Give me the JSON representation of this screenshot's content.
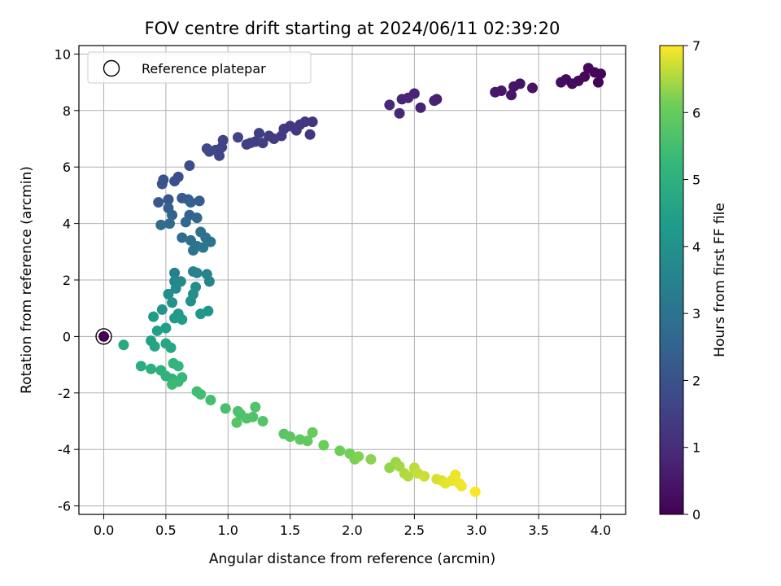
{
  "chart_data": {
    "type": "scatter",
    "title": "FOV centre drift starting at 2024/06/11 02:39:20",
    "xlabel": "Angular distance from reference (arcmin)",
    "ylabel": "Rotation from reference (arcmin)",
    "xlim": [
      -0.2,
      4.2
    ],
    "ylim": [
      -6.3,
      10.3
    ],
    "x_ticks": [
      "0.0",
      "0.5",
      "1.0",
      "1.5",
      "2.0",
      "2.5",
      "3.0",
      "3.5",
      "4.0"
    ],
    "y_ticks": [
      "-6",
      "-4",
      "-2",
      "0",
      "2",
      "4",
      "6",
      "8",
      "10"
    ],
    "grid": true,
    "legend": {
      "placement": "top-left",
      "entries": [
        "Reference platepar"
      ]
    },
    "reference_point": {
      "x": 0.0,
      "y": 0.0,
      "hours": 0
    },
    "colorbar": {
      "label": "Hours from first FF file",
      "range": [
        0,
        7
      ],
      "ticks": [
        "0",
        "1",
        "2",
        "3",
        "4",
        "5",
        "6",
        "7"
      ],
      "colormap": "viridis"
    },
    "points": [
      [
        4.0,
        9.3,
        0.05
      ],
      [
        3.98,
        9.0,
        0.1
      ],
      [
        3.95,
        9.35,
        0.12
      ],
      [
        3.9,
        9.5,
        0.15
      ],
      [
        3.87,
        9.2,
        0.18
      ],
      [
        3.82,
        9.05,
        0.2
      ],
      [
        3.77,
        8.95,
        0.22
      ],
      [
        3.72,
        9.1,
        0.25
      ],
      [
        3.68,
        9.0,
        0.28
      ],
      [
        3.45,
        8.8,
        0.4
      ],
      [
        3.35,
        8.95,
        0.42
      ],
      [
        3.3,
        8.85,
        0.45
      ],
      [
        3.28,
        8.55,
        0.48
      ],
      [
        3.2,
        8.7,
        0.5
      ],
      [
        3.15,
        8.65,
        0.52
      ],
      [
        2.68,
        8.4,
        0.7
      ],
      [
        2.66,
        8.35,
        0.72
      ],
      [
        2.55,
        8.1,
        0.75
      ],
      [
        2.5,
        8.6,
        0.78
      ],
      [
        2.45,
        8.45,
        0.8
      ],
      [
        2.4,
        8.4,
        0.82
      ],
      [
        2.38,
        7.9,
        0.85
      ],
      [
        2.3,
        8.2,
        0.88
      ],
      [
        1.68,
        7.6,
        1.2
      ],
      [
        1.66,
        7.15,
        1.22
      ],
      [
        1.62,
        7.6,
        1.25
      ],
      [
        1.58,
        7.5,
        1.28
      ],
      [
        1.55,
        7.3,
        1.3
      ],
      [
        1.5,
        7.45,
        1.33
      ],
      [
        1.45,
        7.35,
        1.36
      ],
      [
        1.43,
        7.1,
        1.38
      ],
      [
        1.37,
        7.0,
        1.4
      ],
      [
        1.33,
        7.1,
        1.42
      ],
      [
        1.28,
        6.85,
        1.45
      ],
      [
        1.25,
        7.2,
        1.48
      ],
      [
        1.22,
        6.9,
        1.5
      ],
      [
        1.18,
        6.85,
        1.52
      ],
      [
        1.15,
        6.8,
        1.55
      ],
      [
        1.08,
        7.05,
        1.58
      ],
      [
        0.96,
        6.95,
        1.62
      ],
      [
        0.95,
        6.7,
        1.65
      ],
      [
        0.93,
        6.4,
        1.68
      ],
      [
        0.9,
        6.6,
        1.7
      ],
      [
        0.85,
        6.55,
        1.72
      ],
      [
        0.83,
        6.65,
        1.75
      ],
      [
        0.69,
        6.05,
        1.85
      ],
      [
        0.6,
        5.65,
        1.9
      ],
      [
        0.57,
        5.5,
        1.95
      ],
      [
        0.48,
        5.55,
        2.0
      ],
      [
        0.47,
        5.4,
        2.05
      ],
      [
        0.52,
        4.85,
        2.15
      ],
      [
        0.44,
        4.75,
        2.2
      ],
      [
        0.63,
        4.9,
        2.25
      ],
      [
        0.68,
        4.85,
        2.3
      ],
      [
        0.77,
        4.8,
        2.35
      ],
      [
        0.7,
        4.75,
        2.4
      ],
      [
        0.52,
        4.55,
        2.45
      ],
      [
        0.55,
        4.3,
        2.5
      ],
      [
        0.69,
        4.3,
        2.55
      ],
      [
        0.75,
        4.2,
        2.6
      ],
      [
        0.66,
        4.05,
        2.65
      ],
      [
        0.53,
        4.0,
        2.7
      ],
      [
        0.46,
        3.95,
        2.75
      ],
      [
        0.63,
        3.5,
        2.8
      ],
      [
        0.7,
        3.4,
        2.85
      ],
      [
        0.78,
        3.7,
        2.9
      ],
      [
        0.82,
        3.5,
        2.95
      ],
      [
        0.86,
        3.35,
        3.0
      ],
      [
        0.72,
        3.05,
        3.05
      ],
      [
        0.75,
        3.2,
        3.1
      ],
      [
        0.8,
        3.15,
        3.15
      ],
      [
        0.57,
        2.25,
        3.4
      ],
      [
        0.72,
        2.3,
        3.45
      ],
      [
        0.75,
        2.25,
        3.5
      ],
      [
        0.83,
        2.2,
        3.55
      ],
      [
        0.85,
        1.95,
        3.6
      ],
      [
        0.57,
        1.95,
        3.65
      ],
      [
        0.62,
        1.95,
        3.7
      ],
      [
        0.58,
        1.7,
        3.75
      ],
      [
        0.52,
        1.5,
        3.8
      ],
      [
        0.74,
        1.75,
        3.85
      ],
      [
        0.72,
        1.5,
        3.9
      ],
      [
        0.7,
        1.25,
        3.95
      ],
      [
        0.55,
        1.2,
        4.0
      ],
      [
        0.47,
        0.95,
        4.05
      ],
      [
        0.84,
        0.9,
        4.1
      ],
      [
        0.78,
        0.8,
        4.15
      ],
      [
        0.6,
        0.8,
        4.2
      ],
      [
        0.57,
        0.65,
        4.25
      ],
      [
        0.63,
        0.6,
        4.3
      ],
      [
        0.4,
        0.7,
        4.35
      ],
      [
        0.5,
        0.3,
        4.4
      ],
      [
        0.43,
        0.2,
        4.45
      ],
      [
        0.38,
        -0.15,
        4.55
      ],
      [
        0.41,
        -0.35,
        4.6
      ],
      [
        0.5,
        -0.25,
        4.65
      ],
      [
        0.54,
        -0.4,
        4.7
      ],
      [
        0.16,
        -0.3,
        4.75
      ],
      [
        0.3,
        -1.05,
        4.9
      ],
      [
        0.38,
        -1.15,
        4.95
      ],
      [
        0.46,
        -1.2,
        5.0
      ],
      [
        0.5,
        -1.4,
        5.05
      ],
      [
        0.55,
        -1.5,
        5.1
      ],
      [
        0.56,
        -0.95,
        5.15
      ],
      [
        0.6,
        -1.05,
        5.2
      ],
      [
        0.63,
        -1.45,
        5.25
      ],
      [
        0.6,
        -1.6,
        5.3
      ],
      [
        0.55,
        -1.7,
        5.35
      ],
      [
        0.75,
        -1.95,
        5.4
      ],
      [
        0.78,
        -2.05,
        5.45
      ],
      [
        0.86,
        -2.25,
        5.5
      ],
      [
        0.98,
        -2.55,
        5.55
      ],
      [
        1.08,
        -2.65,
        5.6
      ],
      [
        1.1,
        -2.75,
        5.62
      ],
      [
        1.15,
        -2.9,
        5.65
      ],
      [
        1.2,
        -2.85,
        5.68
      ],
      [
        1.22,
        -2.5,
        5.7
      ],
      [
        1.28,
        -3.0,
        5.72
      ],
      [
        1.07,
        -3.05,
        5.75
      ],
      [
        1.45,
        -3.45,
        5.8
      ],
      [
        1.5,
        -3.55,
        5.85
      ],
      [
        1.58,
        -3.65,
        5.9
      ],
      [
        1.64,
        -3.7,
        5.95
      ],
      [
        1.68,
        -3.4,
        6.0
      ],
      [
        1.77,
        -3.85,
        6.05
      ],
      [
        1.9,
        -4.05,
        6.1
      ],
      [
        1.98,
        -4.15,
        6.15
      ],
      [
        2.02,
        -4.35,
        6.2
      ],
      [
        2.05,
        -4.25,
        6.25
      ],
      [
        2.15,
        -4.35,
        6.3
      ],
      [
        2.3,
        -4.65,
        6.35
      ],
      [
        2.35,
        -4.45,
        6.4
      ],
      [
        2.38,
        -4.6,
        6.45
      ],
      [
        2.42,
        -4.85,
        6.5
      ],
      [
        2.45,
        -4.95,
        6.55
      ],
      [
        2.5,
        -4.65,
        6.6
      ],
      [
        2.53,
        -4.85,
        6.65
      ],
      [
        2.58,
        -4.95,
        6.7
      ],
      [
        2.68,
        -5.05,
        6.75
      ],
      [
        2.72,
        -5.1,
        6.8
      ],
      [
        2.75,
        -5.2,
        6.85
      ],
      [
        2.8,
        -5.1,
        6.88
      ],
      [
        2.83,
        -4.9,
        6.9
      ],
      [
        2.86,
        -5.2,
        6.92
      ],
      [
        2.88,
        -5.3,
        6.94
      ],
      [
        2.99,
        -5.5,
        6.98
      ]
    ]
  }
}
